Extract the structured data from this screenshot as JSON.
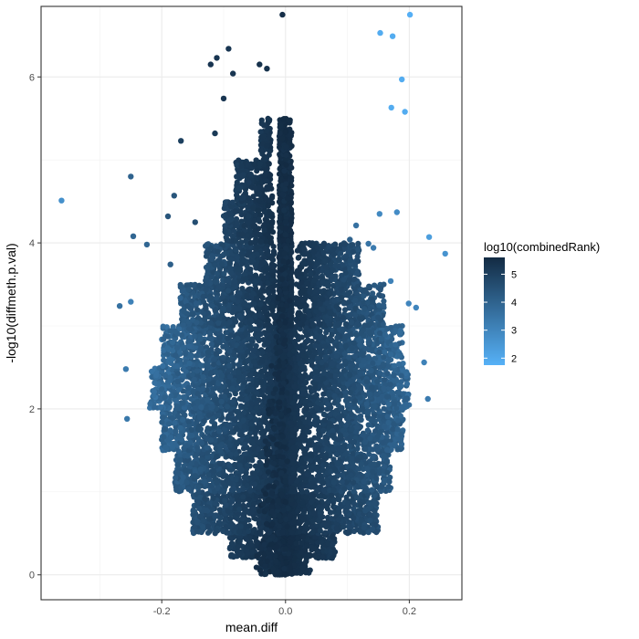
{
  "chart_data": {
    "type": "scatter",
    "title": "",
    "xlabel": "mean.diff",
    "ylabel": "-log10(diffmeth.p.val)",
    "xlim": [
      -0.395,
      0.285
    ],
    "ylim": [
      -0.3,
      6.85
    ],
    "x_ticks": [
      -0.2,
      0.0,
      0.2
    ],
    "x_tick_labels": [
      "-0.2",
      "0.0",
      "0.2"
    ],
    "y_ticks": [
      0,
      2,
      4,
      6
    ],
    "y_tick_labels": [
      "0",
      "2",
      "4",
      "6"
    ],
    "grid": true,
    "legend": {
      "title": "log10(combinedRank)",
      "placement": "right",
      "range": [
        1.75,
        5.6
      ],
      "breaks": [
        5,
        4,
        3,
        2
      ],
      "break_labels": [
        "5",
        "4",
        "3",
        "2"
      ],
      "color_low": "#56B1F7",
      "color_high": "#132B43"
    },
    "points": [
      {
        "x": -0.362,
        "y": 4.51,
        "c": 2.7
      },
      {
        "x": 0.201,
        "y": 6.75,
        "c": 1.8
      },
      {
        "x": -0.005,
        "y": 6.75,
        "c": 5.5
      },
      {
        "x": 0.153,
        "y": 6.53,
        "c": 1.9
      },
      {
        "x": 0.173,
        "y": 6.49,
        "c": 1.9
      },
      {
        "x": 0.188,
        "y": 5.97,
        "c": 1.9
      },
      {
        "x": 0.171,
        "y": 5.63,
        "c": 1.9
      },
      {
        "x": 0.193,
        "y": 5.58,
        "c": 1.9
      },
      {
        "x": -0.092,
        "y": 6.34,
        "c": 5.3
      },
      {
        "x": -0.111,
        "y": 6.23,
        "c": 5.3
      },
      {
        "x": -0.121,
        "y": 6.15,
        "c": 5.3
      },
      {
        "x": -0.085,
        "y": 6.04,
        "c": 5.3
      },
      {
        "x": -0.042,
        "y": 6.15,
        "c": 5.4
      },
      {
        "x": -0.03,
        "y": 6.1,
        "c": 5.4
      },
      {
        "x": -0.1,
        "y": 5.74,
        "c": 5.3
      },
      {
        "x": -0.114,
        "y": 5.32,
        "c": 5.2
      },
      {
        "x": -0.169,
        "y": 5.23,
        "c": 5.0
      },
      {
        "x": -0.25,
        "y": 4.8,
        "c": 4.0
      },
      {
        "x": -0.18,
        "y": 4.57,
        "c": 4.4
      },
      {
        "x": -0.19,
        "y": 4.32,
        "c": 4.4
      },
      {
        "x": -0.146,
        "y": 4.25,
        "c": 4.6
      },
      {
        "x": -0.246,
        "y": 4.08,
        "c": 3.9
      },
      {
        "x": -0.224,
        "y": 3.98,
        "c": 3.9
      },
      {
        "x": -0.186,
        "y": 3.74,
        "c": 4.1
      },
      {
        "x": -0.268,
        "y": 3.24,
        "c": 3.6
      },
      {
        "x": -0.25,
        "y": 3.29,
        "c": 3.1
      },
      {
        "x": -0.258,
        "y": 2.48,
        "c": 3.3
      },
      {
        "x": -0.256,
        "y": 1.88,
        "c": 3.4
      },
      {
        "x": 0.232,
        "y": 4.07,
        "c": 2.3
      },
      {
        "x": 0.258,
        "y": 3.87,
        "c": 2.6
      },
      {
        "x": 0.18,
        "y": 4.37,
        "c": 2.8
      },
      {
        "x": 0.152,
        "y": 4.35,
        "c": 2.9
      },
      {
        "x": 0.114,
        "y": 4.21,
        "c": 3.6
      },
      {
        "x": 0.134,
        "y": 3.99,
        "c": 3.5
      },
      {
        "x": 0.104,
        "y": 4.04,
        "c": 4.0
      },
      {
        "x": 0.17,
        "y": 3.54,
        "c": 3.1
      },
      {
        "x": 0.142,
        "y": 3.94,
        "c": 3.3
      },
      {
        "x": 0.199,
        "y": 3.27,
        "c": 3.0
      },
      {
        "x": 0.211,
        "y": 3.22,
        "c": 3.0
      },
      {
        "x": 0.224,
        "y": 2.56,
        "c": 3.1
      },
      {
        "x": 0.23,
        "y": 2.12,
        "c": 3.3
      }
    ],
    "density": [
      {
        "y0": 0.0,
        "y1": 0.2,
        "xmin": -0.04,
        "xmax": 0.04,
        "cmin": 5.3,
        "cmax": 5.6
      },
      {
        "y0": 0.2,
        "y1": 0.5,
        "xmin": -0.09,
        "xmax": 0.08,
        "cmin": 5.0,
        "cmax": 5.6
      },
      {
        "y0": 0.5,
        "y1": 1.0,
        "xmin": -0.15,
        "xmax": 0.15,
        "cmin": 4.4,
        "cmax": 5.5
      },
      {
        "y0": 1.0,
        "y1": 1.5,
        "xmin": -0.18,
        "xmax": 0.17,
        "cmin": 4.0,
        "cmax": 5.4
      },
      {
        "y0": 1.5,
        "y1": 2.0,
        "xmin": -0.2,
        "xmax": 0.19,
        "cmin": 3.7,
        "cmax": 5.4
      },
      {
        "y0": 2.0,
        "y1": 2.5,
        "xmin": -0.22,
        "xmax": 0.2,
        "cmin": 3.4,
        "cmax": 5.4
      },
      {
        "y0": 2.5,
        "y1": 3.0,
        "xmin": -0.2,
        "xmax": 0.19,
        "cmin": 3.5,
        "cmax": 5.4
      },
      {
        "y0": 3.0,
        "y1": 3.5,
        "xmin": -0.17,
        "xmax": 0.16,
        "cmin": 4.0,
        "cmax": 5.5
      },
      {
        "y0": 3.5,
        "y1": 4.0,
        "xmin": -0.13,
        "xmax": 0.12,
        "cmin": 4.3,
        "cmax": 5.5
      },
      {
        "y0": 4.0,
        "y1": 4.5,
        "xmin": -0.1,
        "xmax": 0.02,
        "cmin": 4.8,
        "cmax": 5.6
      },
      {
        "y0": 4.5,
        "y1": 5.0,
        "xmin": -0.08,
        "xmax": 0.0,
        "cmin": 5.0,
        "cmax": 5.6
      },
      {
        "y0": 5.0,
        "y1": 5.5,
        "xmin": -0.04,
        "xmax": 0.0,
        "cmin": 5.2,
        "cmax": 5.6
      }
    ]
  }
}
